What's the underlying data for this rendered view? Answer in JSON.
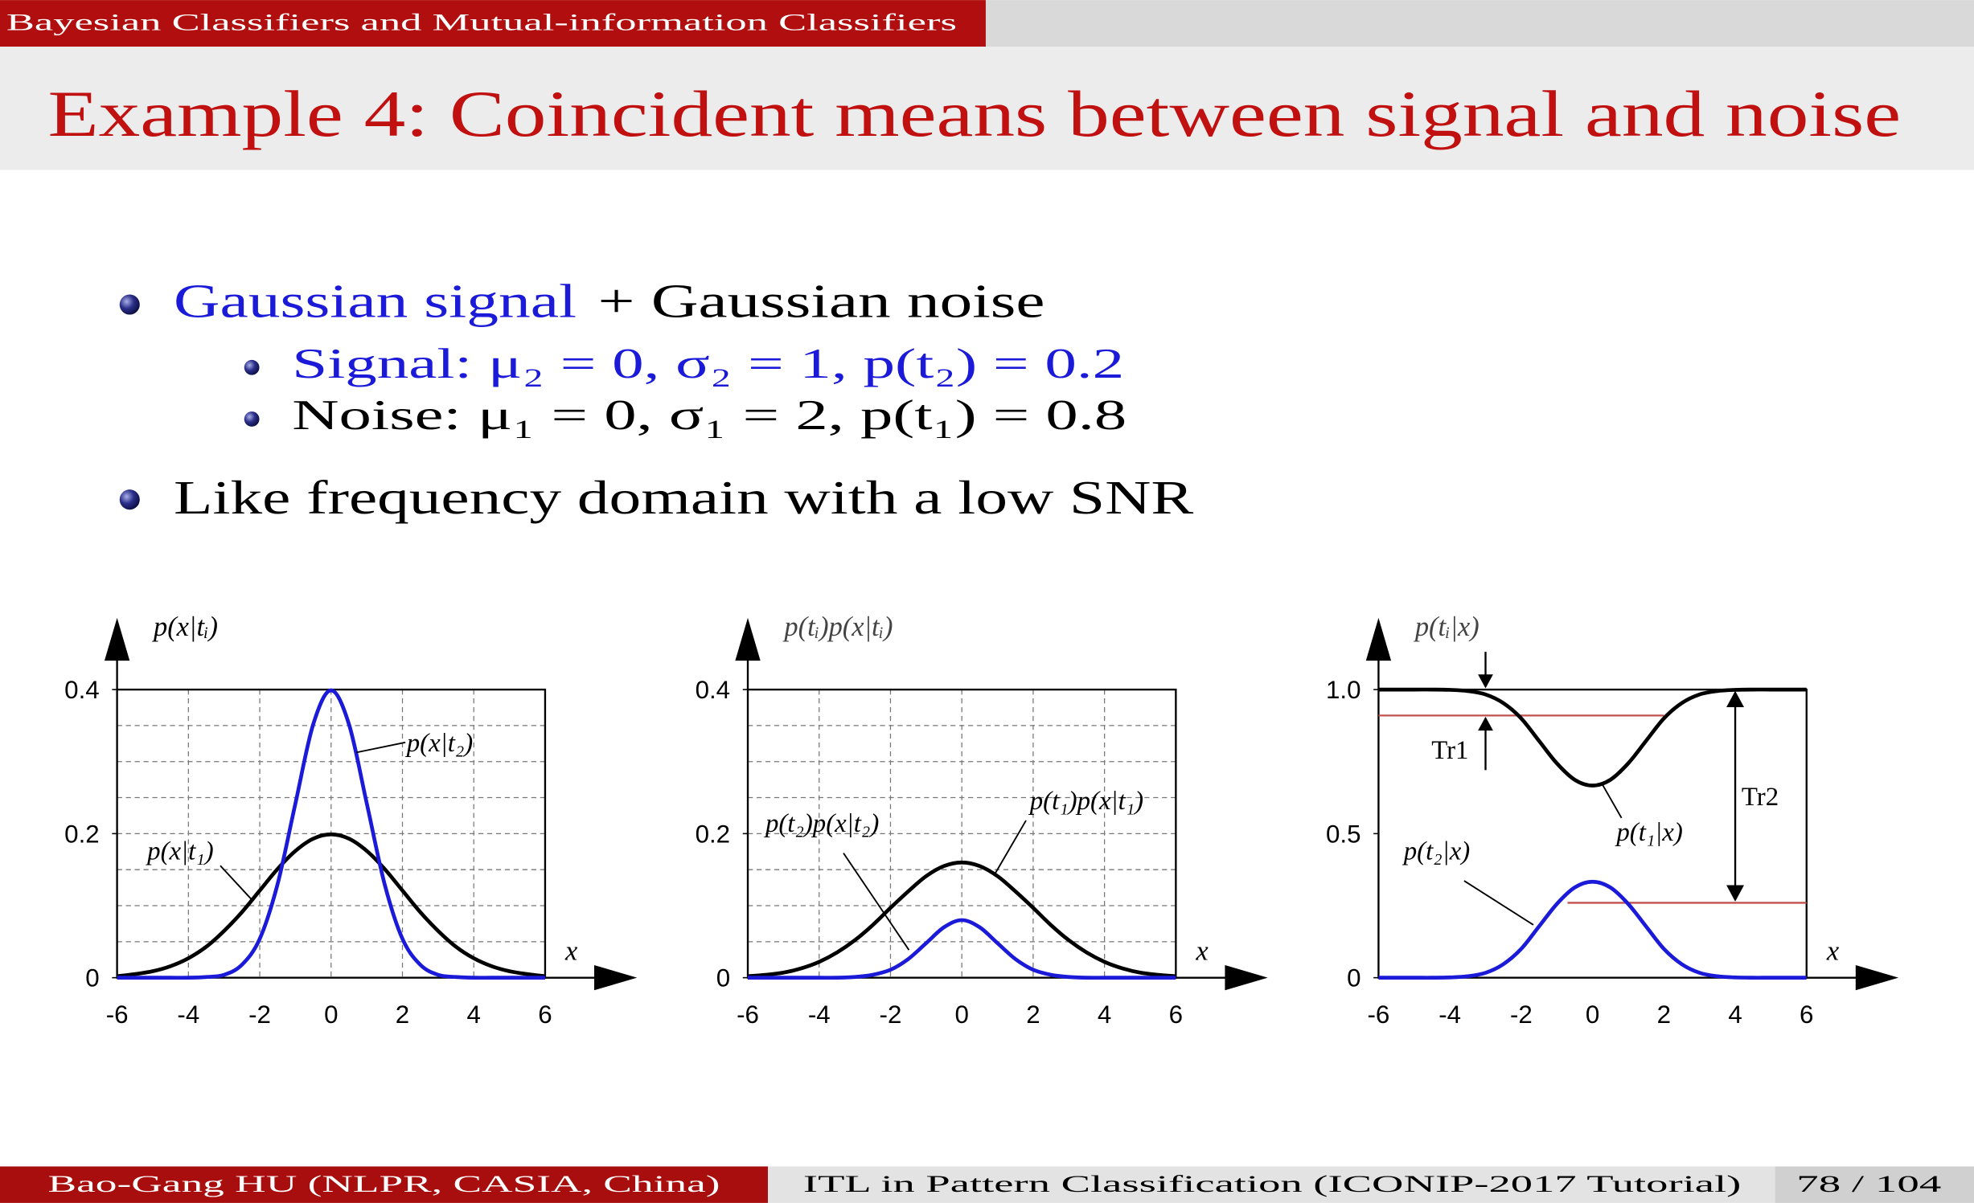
{
  "header": {
    "section": "Bayesian Classifiers and Mutual-information Classifiers",
    "title": "Example 4: Coincident means between signal and noise"
  },
  "bullets": [
    {
      "text_parts": [
        "Gaussian signal",
        "+ Gaussian noise"
      ],
      "subitems": [
        "Signal: μ₂ = 0, σ₂ = 1, p(t₂) = 0.2",
        "Noise: μ₁ = 0, σ₁ = 2, p(t₁) = 0.8"
      ]
    },
    {
      "text_parts": [
        "Like frequency domain with a low SNR"
      ]
    }
  ],
  "chart_data": [
    {
      "type": "line",
      "ylabel": "p(x|tᵢ)",
      "xlabel": "x",
      "x": [
        -6,
        -5.5,
        -5,
        -4.5,
        -4,
        -3.5,
        -3,
        -2.5,
        -2,
        -1.5,
        -1,
        -0.5,
        0,
        0.5,
        1,
        1.5,
        2,
        2.5,
        3,
        3.5,
        4,
        4.5,
        5,
        5.5,
        6
      ],
      "xlim": [
        -6,
        6
      ],
      "xticks": [
        -6,
        -4,
        -2,
        0,
        2,
        4,
        6
      ],
      "ylim": [
        0,
        0.4
      ],
      "yticks": [
        0,
        0.2,
        0.4
      ],
      "grid": true,
      "grid_y": [
        0.05,
        0.1,
        0.15,
        0.2,
        0.25,
        0.3,
        0.35
      ],
      "series": [
        {
          "name": "p(x|t₁)",
          "color": "#000000",
          "values": [
            0.002,
            0.005,
            0.009,
            0.016,
            0.027,
            0.043,
            0.065,
            0.091,
            0.121,
            0.151,
            0.176,
            0.193,
            0.199,
            0.193,
            0.176,
            0.151,
            0.121,
            0.091,
            0.065,
            0.043,
            0.027,
            0.016,
            0.009,
            0.005,
            0.002
          ]
        },
        {
          "name": "p(x|t₂)",
          "color": "#1a1ad8",
          "values": [
            0,
            0,
            0,
            0,
            0,
            0.001,
            0.004,
            0.018,
            0.054,
            0.13,
            0.242,
            0.352,
            0.399,
            0.352,
            0.242,
            0.13,
            0.054,
            0.018,
            0.004,
            0.001,
            0,
            0,
            0,
            0,
            0
          ]
        }
      ]
    },
    {
      "type": "line",
      "ylabel": "p(tᵢ)p(x|tᵢ)",
      "xlabel": "x",
      "x": [
        -6,
        -5.5,
        -5,
        -4.5,
        -4,
        -3.5,
        -3,
        -2.5,
        -2,
        -1.5,
        -1,
        -0.5,
        0,
        0.5,
        1,
        1.5,
        2,
        2.5,
        3,
        3.5,
        4,
        4.5,
        5,
        5.5,
        6
      ],
      "xlim": [
        -6,
        6
      ],
      "xticks": [
        -6,
        -4,
        -2,
        0,
        2,
        4,
        6
      ],
      "ylim": [
        0,
        0.4
      ],
      "yticks": [
        0,
        0.2,
        0.4
      ],
      "grid": true,
      "grid_y": [
        0.05,
        0.1,
        0.15,
        0.2,
        0.25,
        0.3,
        0.35
      ],
      "series": [
        {
          "name": "p(t₁)p(x|t₁)",
          "color": "#000000",
          "values": [
            0.002,
            0.004,
            0.007,
            0.013,
            0.022,
            0.035,
            0.052,
            0.073,
            0.097,
            0.12,
            0.141,
            0.155,
            0.16,
            0.155,
            0.141,
            0.12,
            0.097,
            0.073,
            0.052,
            0.035,
            0.022,
            0.013,
            0.007,
            0.004,
            0.002
          ]
        },
        {
          "name": "p(t₂)p(x|t₂)",
          "color": "#1a1ad8",
          "values": [
            0,
            0,
            0,
            0,
            0,
            0,
            0.001,
            0.004,
            0.011,
            0.026,
            0.048,
            0.07,
            0.08,
            0.07,
            0.048,
            0.026,
            0.011,
            0.004,
            0.001,
            0,
            0,
            0,
            0,
            0,
            0
          ]
        }
      ]
    },
    {
      "type": "line",
      "ylabel": "p(tᵢ|x)",
      "xlabel": "x",
      "x": [
        -6,
        -5.5,
        -5,
        -4.5,
        -4,
        -3.5,
        -3,
        -2.5,
        -2,
        -1.5,
        -1,
        -0.5,
        0,
        0.5,
        1,
        1.5,
        2,
        2.5,
        3,
        3.5,
        4,
        4.5,
        5,
        5.5,
        6
      ],
      "xlim": [
        -6,
        6
      ],
      "xticks": [
        -6,
        -4,
        -2,
        0,
        2,
        4,
        6
      ],
      "ylim": [
        0,
        1
      ],
      "yticks": [
        0,
        0.5,
        {
          "value": 1,
          "label": "1.0"
        }
      ],
      "grid": false,
      "series": [
        {
          "name": "p(t₁|x)",
          "color": "#000000",
          "values": [
            1,
            1,
            1,
            1,
            0.999,
            0.995,
            0.983,
            0.953,
            0.9,
            0.822,
            0.744,
            0.687,
            0.667,
            0.687,
            0.744,
            0.822,
            0.9,
            0.953,
            0.983,
            0.995,
            0.999,
            1,
            1,
            1,
            1
          ]
        },
        {
          "name": "p(t₂|x)",
          "color": "#1a1ad8",
          "values": [
            0,
            0,
            0,
            0,
            0.001,
            0.005,
            0.017,
            0.047,
            0.1,
            0.178,
            0.256,
            0.313,
            0.333,
            0.313,
            0.256,
            0.178,
            0.1,
            0.047,
            0.017,
            0.005,
            0.001,
            0,
            0,
            0,
            0
          ]
        }
      ],
      "thresholds": [
        {
          "label": "Tr1",
          "value": 0.91,
          "x": [
            -6,
            2
          ],
          "color": "#c0504d"
        },
        {
          "label": "Tr2",
          "value": 0.26,
          "x": [
            -0.7,
            6
          ],
          "color": "#c0504d"
        }
      ]
    }
  ],
  "footer": {
    "author": "Bao-Gang HU (NLPR, CASIA, China)",
    "talk": "ITL in Pattern Classification (ICONIP-2017 Tutorial)",
    "page": "78 / 104"
  }
}
